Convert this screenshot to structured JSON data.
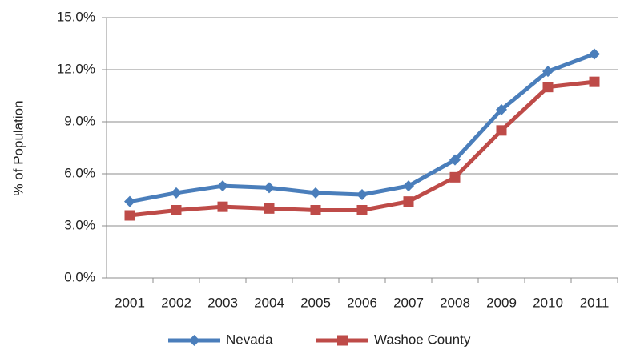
{
  "chart_data": {
    "type": "line",
    "y_label": "% of Population",
    "categories": [
      "2001",
      "2002",
      "2003",
      "2004",
      "2005",
      "2006",
      "2007",
      "2008",
      "2009",
      "2010",
      "2011"
    ],
    "series": [
      {
        "name": "Nevada",
        "color": "#4a7ebb",
        "marker": "diamond",
        "values": [
          4.4,
          4.9,
          5.3,
          5.2,
          4.9,
          4.8,
          5.3,
          6.8,
          9.7,
          11.9,
          12.9
        ]
      },
      {
        "name": "Washoe County",
        "color": "#be4b48",
        "marker": "square",
        "values": [
          3.6,
          3.9,
          4.1,
          4.0,
          3.9,
          3.9,
          4.4,
          5.8,
          8.5,
          11.0,
          11.3
        ]
      }
    ],
    "ylim": [
      0,
      15
    ],
    "yticks": [
      {
        "value": 0,
        "label": "0.0%"
      },
      {
        "value": 3,
        "label": "3.0%"
      },
      {
        "value": 6,
        "label": "6.0%"
      },
      {
        "value": 9,
        "label": "9.0%"
      },
      {
        "value": 12,
        "label": "12.0%"
      },
      {
        "value": 15,
        "label": "15.0%"
      }
    ],
    "grid": true,
    "legend": "bottom"
  }
}
